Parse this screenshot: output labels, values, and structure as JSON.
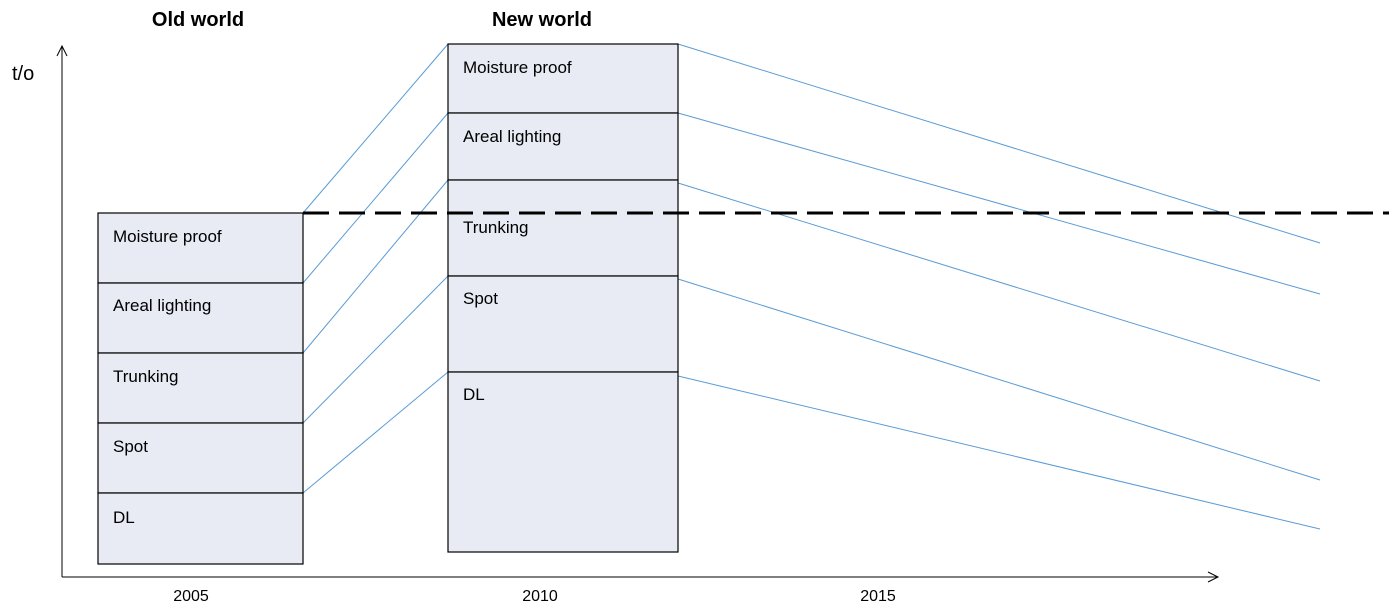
{
  "headers": {
    "old": "Old world",
    "new": "New world"
  },
  "axis": {
    "y_label": "t/o",
    "x_ticks": [
      "2005",
      "2010",
      "2015"
    ]
  },
  "old_world": {
    "segments": [
      "Moisture proof",
      "Areal lighting",
      "Trunking",
      "Spot",
      "DL"
    ]
  },
  "new_world": {
    "segments": [
      "Moisture proof",
      "Areal lighting",
      "Trunking",
      "Spot",
      "DL"
    ]
  },
  "colors": {
    "segment_fill": "#e8ebf4",
    "connector": "#5b9bd5",
    "outline": "#000000"
  }
}
